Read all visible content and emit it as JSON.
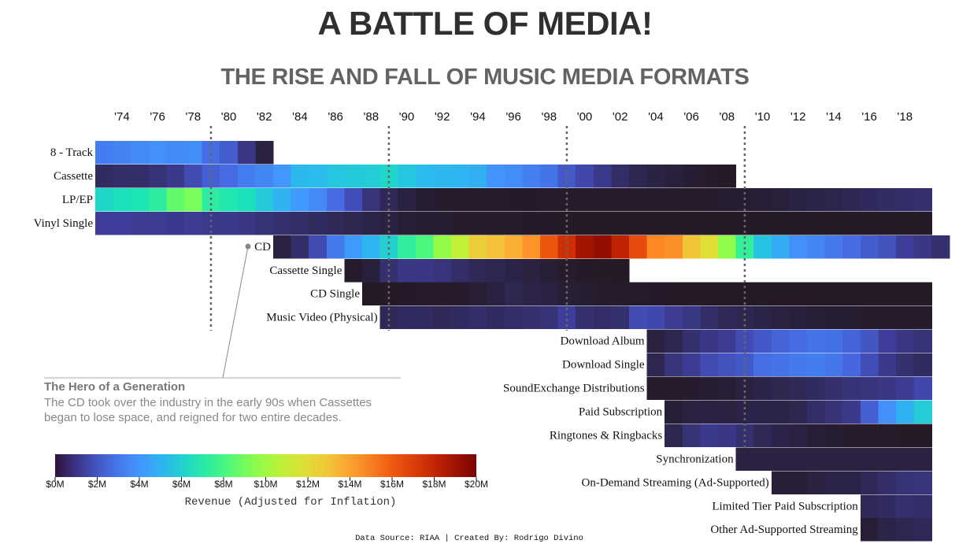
{
  "title": "A BATTLE OF MEDIA!",
  "subtitle": "THE RISE AND FALL OF MUSIC MEDIA FORMATS",
  "chart_data": {
    "type": "heatmap",
    "x_start_year": 1973,
    "x_end_year": 2019,
    "tick_labels": [
      "'74",
      "'76",
      "'78",
      "'80",
      "'82",
      "'84",
      "'86",
      "'88",
      "'90",
      "'92",
      "'94",
      "'96",
      "'98",
      "'00",
      "'02",
      "'04",
      "'06",
      "'08",
      "'10",
      "'12",
      "'14",
      "'16",
      "'18"
    ],
    "tick_years": [
      1974,
      1976,
      1978,
      1980,
      1982,
      1984,
      1986,
      1988,
      1990,
      1992,
      1994,
      1996,
      1998,
      2000,
      2002,
      2004,
      2006,
      2008,
      2010,
      2012,
      2014,
      2016,
      2018
    ],
    "reference_years": [
      1979.5,
      1989.5,
      1999.5,
      2009.5
    ],
    "value_unit": "$M",
    "color_range": [
      0,
      20
    ],
    "rows": [
      {
        "name": "8 - Track",
        "start": 1973,
        "values": [
          3.2,
          3.4,
          3.6,
          3.8,
          3.6,
          3.7,
          2.6,
          2.2,
          1.2,
          0.3
        ]
      },
      {
        "name": "Cassette",
        "start": 1973,
        "values": [
          0.7,
          0.8,
          0.8,
          1.0,
          1.3,
          1.7,
          2.3,
          2.6,
          3.2,
          3.5,
          4.0,
          5.3,
          5.4,
          5.7,
          5.8,
          5.9,
          6.2,
          5.7,
          5.4,
          5.2,
          5.1,
          4.9,
          3.9,
          3.7,
          3.3,
          2.9,
          2.1,
          1.6,
          1.3,
          0.8,
          0.5,
          0.35,
          0.25,
          0.15,
          0.08,
          0.02
        ]
      },
      {
        "name": "LP/EP",
        "start": 1973,
        "values": [
          6.2,
          6.5,
          6.7,
          7.2,
          8.6,
          9.1,
          7.2,
          6.8,
          6.5,
          5.8,
          5.0,
          4.2,
          3.6,
          2.6,
          1.8,
          1.1,
          0.6,
          0.3,
          0.15,
          0.1,
          0.08,
          0.05,
          0.05,
          0.04,
          0.04,
          0.05,
          0.05,
          0.05,
          0.05,
          0.05,
          0.05,
          0.06,
          0.06,
          0.08,
          0.1,
          0.12,
          0.15,
          0.2,
          0.25,
          0.35,
          0.4,
          0.45,
          0.55,
          0.65,
          0.75,
          0.85,
          0.9
        ]
      },
      {
        "name": "Vinyl Single",
        "start": 1973,
        "values": [
          1.5,
          1.5,
          1.4,
          1.4,
          1.3,
          1.4,
          1.3,
          1.3,
          1.2,
          1.0,
          0.9,
          0.8,
          0.7,
          0.6,
          0.5,
          0.4,
          0.3,
          0.2,
          0.15,
          0.12,
          0.1,
          0.08,
          0.06,
          0.05,
          0.04,
          0.04,
          0.03,
          0.03,
          0.02,
          0.02,
          0.02,
          0.02,
          0.02,
          0.02,
          0.02,
          0.02,
          0.02,
          0.02,
          0.02,
          0.02,
          0.02,
          0.02,
          0.02,
          0.02,
          0.02,
          0.02,
          0.02
        ]
      },
      {
        "name": "CD",
        "start": 1983,
        "values": [
          0.3,
          0.8,
          1.7,
          3.1,
          4.2,
          5.1,
          6.0,
          7.3,
          8.1,
          9.7,
          10.8,
          12.6,
          13.1,
          13.7,
          14.4,
          16.1,
          17.6,
          18.9,
          19.3,
          18.1,
          16.5,
          14.7,
          14.5,
          12.9,
          11.9,
          9.6,
          7.4,
          5.6,
          4.8,
          3.8,
          3.5,
          3.1,
          2.6,
          2.2,
          1.9,
          1.5,
          1.2,
          0.9
        ]
      },
      {
        "name": "Cassette Single",
        "start": 1987,
        "values": [
          0.05,
          0.25,
          0.9,
          1.2,
          1.2,
          1.1,
          0.8,
          0.6,
          0.5,
          0.4,
          0.3,
          0.2,
          0.08,
          0.04,
          0.02,
          0.01
        ]
      },
      {
        "name": "CD Single",
        "start": 1988,
        "values": [
          0.01,
          0.02,
          0.04,
          0.05,
          0.1,
          0.1,
          0.2,
          0.3,
          0.5,
          0.4,
          0.3,
          0.2,
          0.15,
          0.1,
          0.08,
          0.05,
          0.04,
          0.03,
          0.02,
          0.02,
          0.02,
          0.01,
          0.01,
          0.01,
          0.01,
          0.01,
          0.01,
          0.01,
          0.01,
          0.01,
          0.01,
          0.01
        ]
      },
      {
        "name": "Music Video (Physical)",
        "start": 1989,
        "values": [
          0.6,
          0.7,
          0.7,
          0.6,
          0.7,
          0.8,
          0.7,
          0.8,
          0.9,
          1.0,
          1.5,
          0.9,
          0.8,
          0.9,
          1.7,
          1.6,
          1.4,
          1.2,
          0.8,
          0.6,
          0.5,
          0.4,
          0.3,
          0.25,
          0.2,
          0.15,
          0.12,
          0.1,
          0.1,
          0.1,
          0.1
        ]
      },
      {
        "name": "Download Album",
        "start": 2004,
        "values": [
          0.3,
          0.5,
          0.9,
          1.2,
          1.4,
          1.7,
          2.1,
          2.4,
          2.6,
          2.9,
          2.8,
          2.4,
          2.0,
          1.5,
          1.2,
          1.0
        ]
      },
      {
        "name": "Download Single",
        "start": 2004,
        "values": [
          0.5,
          1.1,
          1.4,
          1.7,
          1.9,
          2.1,
          2.7,
          2.9,
          3.1,
          3.2,
          3.0,
          2.5,
          1.8,
          1.3,
          0.9,
          0.7
        ]
      },
      {
        "name": "SoundExchange Distributions",
        "start": 2004,
        "values": [
          0.05,
          0.05,
          0.1,
          0.15,
          0.2,
          0.3,
          0.4,
          0.5,
          0.6,
          0.7,
          0.9,
          1.0,
          1.1,
          1.2,
          1.4,
          1.6
        ]
      },
      {
        "name": "Paid Subscription",
        "start": 2005,
        "values": [
          0.2,
          0.3,
          0.3,
          0.3,
          0.4,
          0.4,
          0.4,
          0.5,
          0.8,
          1.0,
          1.3,
          2.3,
          3.8,
          5.0,
          5.9
        ]
      },
      {
        "name": "Ringtones & Ringbacks",
        "start": 2005,
        "values": [
          0.5,
          1.0,
          1.3,
          1.2,
          0.9,
          0.6,
          0.4,
          0.3,
          0.2,
          0.15,
          0.1,
          0.08,
          0.05,
          0.03,
          0.02
        ]
      },
      {
        "name": "Synchronization",
        "start": 2009,
        "values": [
          0.3,
          0.3,
          0.3,
          0.3,
          0.3,
          0.3,
          0.3,
          0.3,
          0.3,
          0.3,
          0.3
        ]
      },
      {
        "name": "On-Demand Streaming (Ad-Supported)",
        "start": 2011,
        "values": [
          0.2,
          0.2,
          0.3,
          0.4,
          0.4,
          0.6,
          0.8,
          1.0,
          1.1
        ]
      },
      {
        "name": "Limited Tier Paid Subscription",
        "start": 2016,
        "values": [
          0.6,
          0.7,
          0.9,
          0.8
        ]
      },
      {
        "name": "Other Ad-Supported Streaming",
        "start": 2016,
        "values": [
          0.2,
          0.4,
          0.5,
          0.6
        ]
      }
    ],
    "colorbar": {
      "ticks": [
        "$0M",
        "$2M",
        "$4M",
        "$6M",
        "$8M",
        "$10M",
        "$12M",
        "$14M",
        "$16M",
        "$18M",
        "$20M"
      ],
      "label": "Revenue (Adjusted for Inflation)"
    },
    "annotation": {
      "target_row": "CD",
      "heading": "The Hero of a Generation",
      "lines": [
        "The CD took over the industry in the early 90s when Cassettes",
        "began to lose space, and reigned for two entire decades."
      ]
    },
    "source": "Data Source: RIAA | Created By: Rodrigo Divino"
  }
}
